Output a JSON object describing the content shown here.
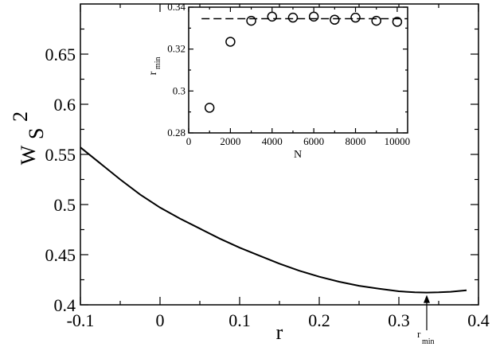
{
  "chart_data": [
    {
      "type": "line",
      "title": "",
      "xlabel": "r",
      "ylabel": {
        "base": "W",
        "sub": "S",
        "sup": "2"
      },
      "xlim": [
        -0.1,
        0.4
      ],
      "ylim": [
        0.4,
        0.7
      ],
      "xticks": [
        -0.1,
        0,
        0.1,
        0.2,
        0.3,
        0.4
      ],
      "xtick_labels": [
        "-0.1",
        "0",
        "0.1",
        "0.2",
        "0.3",
        "0.4"
      ],
      "yticks": [
        0.4,
        0.45,
        0.5,
        0.55,
        0.6,
        0.65
      ],
      "ytick_labels": [
        "0.4",
        "0.45",
        "0.5",
        "0.55",
        "0.6",
        "0.65"
      ],
      "series": [
        {
          "x": [
            -0.1,
            -0.075,
            -0.05,
            -0.025,
            0.0,
            0.025,
            0.05,
            0.075,
            0.1,
            0.125,
            0.15,
            0.175,
            0.2,
            0.225,
            0.25,
            0.275,
            0.3,
            0.32,
            0.335,
            0.35,
            0.365,
            0.385
          ],
          "values": [
            0.557,
            0.541,
            0.525,
            0.51,
            0.497,
            0.486,
            0.476,
            0.466,
            0.457,
            0.449,
            0.441,
            0.434,
            0.428,
            0.423,
            0.419,
            0.416,
            0.4135,
            0.4125,
            0.4122,
            0.4125,
            0.413,
            0.4145
          ]
        }
      ],
      "annotation": {
        "text": "r",
        "sub": "min",
        "x": 0.335,
        "y": 0.4122
      }
    },
    {
      "type": "scatter",
      "title": "",
      "xlabel": "N",
      "ylabel": {
        "base": "r",
        "sub": "min"
      },
      "xlim": [
        0,
        10500
      ],
      "ylim": [
        0.28,
        0.34
      ],
      "xticks": [
        0,
        2000,
        4000,
        6000,
        8000,
        10000
      ],
      "xtick_labels": [
        "0",
        "2000",
        "4000",
        "6000",
        "8000",
        "10000"
      ],
      "yticks": [
        0.28,
        0.3,
        0.32,
        0.34
      ],
      "ytick_labels": [
        "0.28",
        "0.3",
        "0.32",
        "0.34"
      ],
      "series": [
        {
          "x": [
            1000,
            2000,
            3000,
            4000,
            5000,
            6000,
            7000,
            8000,
            9000,
            10000
          ],
          "values": [
            0.292,
            0.3235,
            0.3335,
            0.3355,
            0.335,
            0.3355,
            0.334,
            0.335,
            0.3335,
            0.333
          ]
        }
      ],
      "reference_line": {
        "y": 0.3345,
        "style": "dashed"
      }
    }
  ]
}
